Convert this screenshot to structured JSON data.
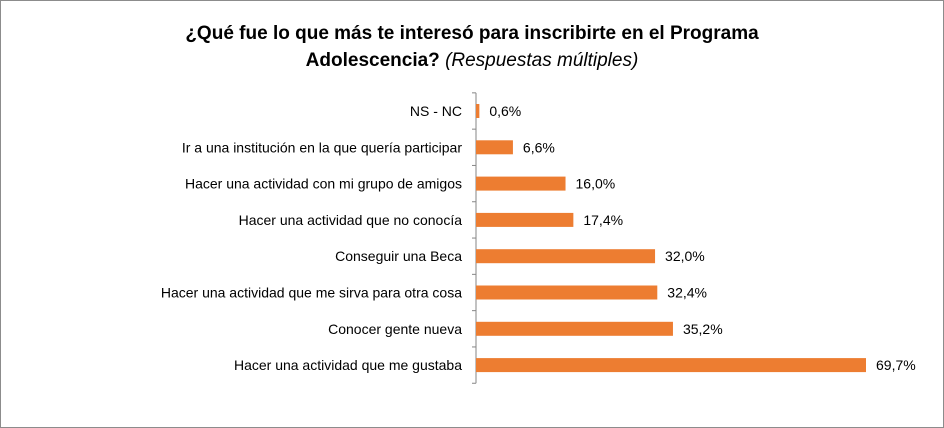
{
  "chart_data": {
    "type": "bar",
    "orientation": "horizontal",
    "title_line1": "¿Qué fue lo que más te interesó para inscribirte en el Programa",
    "title_line2": "Adolescencia?",
    "subtitle": "(Respuestas múltiples)",
    "categories": [
      "NS - NC",
      "Ir a una institución en la que quería participar",
      "Hacer una actividad con mi grupo de amigos",
      "Hacer una actividad que no conocía",
      "Conseguir una Beca",
      "Hacer una actividad que me sirva para otra cosa",
      "Conocer gente nueva",
      "Hacer una actividad que me gustaba"
    ],
    "values": [
      0.6,
      6.6,
      16.0,
      17.4,
      32.0,
      32.4,
      35.2,
      69.7
    ],
    "value_labels": [
      "0,6%",
      "6,6%",
      "16,0%",
      "17,4%",
      "32,0%",
      "32,4%",
      "35,2%",
      "69,7%"
    ],
    "xlim": [
      0,
      70
    ],
    "grid": false,
    "legend": "none",
    "bar_color": "#ED7D31",
    "axis_color": "#868686"
  }
}
